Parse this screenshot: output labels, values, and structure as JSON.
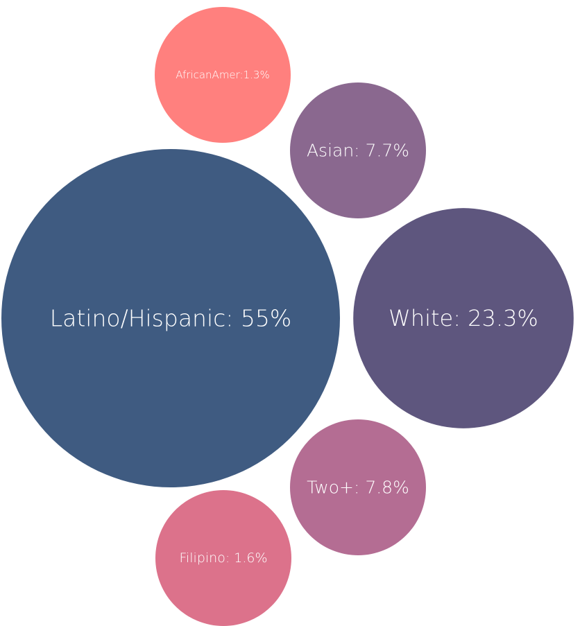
{
  "chart_data": {
    "type": "bubble",
    "title": "",
    "series": [
      {
        "category": "Latino/Hispanic",
        "value": 55,
        "label": "Latino/Hispanic: 55%",
        "color": "#3f5b81"
      },
      {
        "category": "White",
        "value": 23.3,
        "label": "White: 23.3%",
        "color": "#5e567e"
      },
      {
        "category": "Two+",
        "value": 7.8,
        "label": "Two+: 7.8%",
        "color": "#b46d93"
      },
      {
        "category": "Asian",
        "value": 7.7,
        "label": "Asian: 7.7%",
        "color": "#8a688f"
      },
      {
        "category": "Filipino",
        "value": 1.6,
        "label": "Filipino: 1.6%",
        "color": "#dc728b"
      },
      {
        "category": "AfricanAmer",
        "value": 1.3,
        "label": "AfricanAmer:1.3%",
        "color": "#ff807e"
      }
    ]
  }
}
